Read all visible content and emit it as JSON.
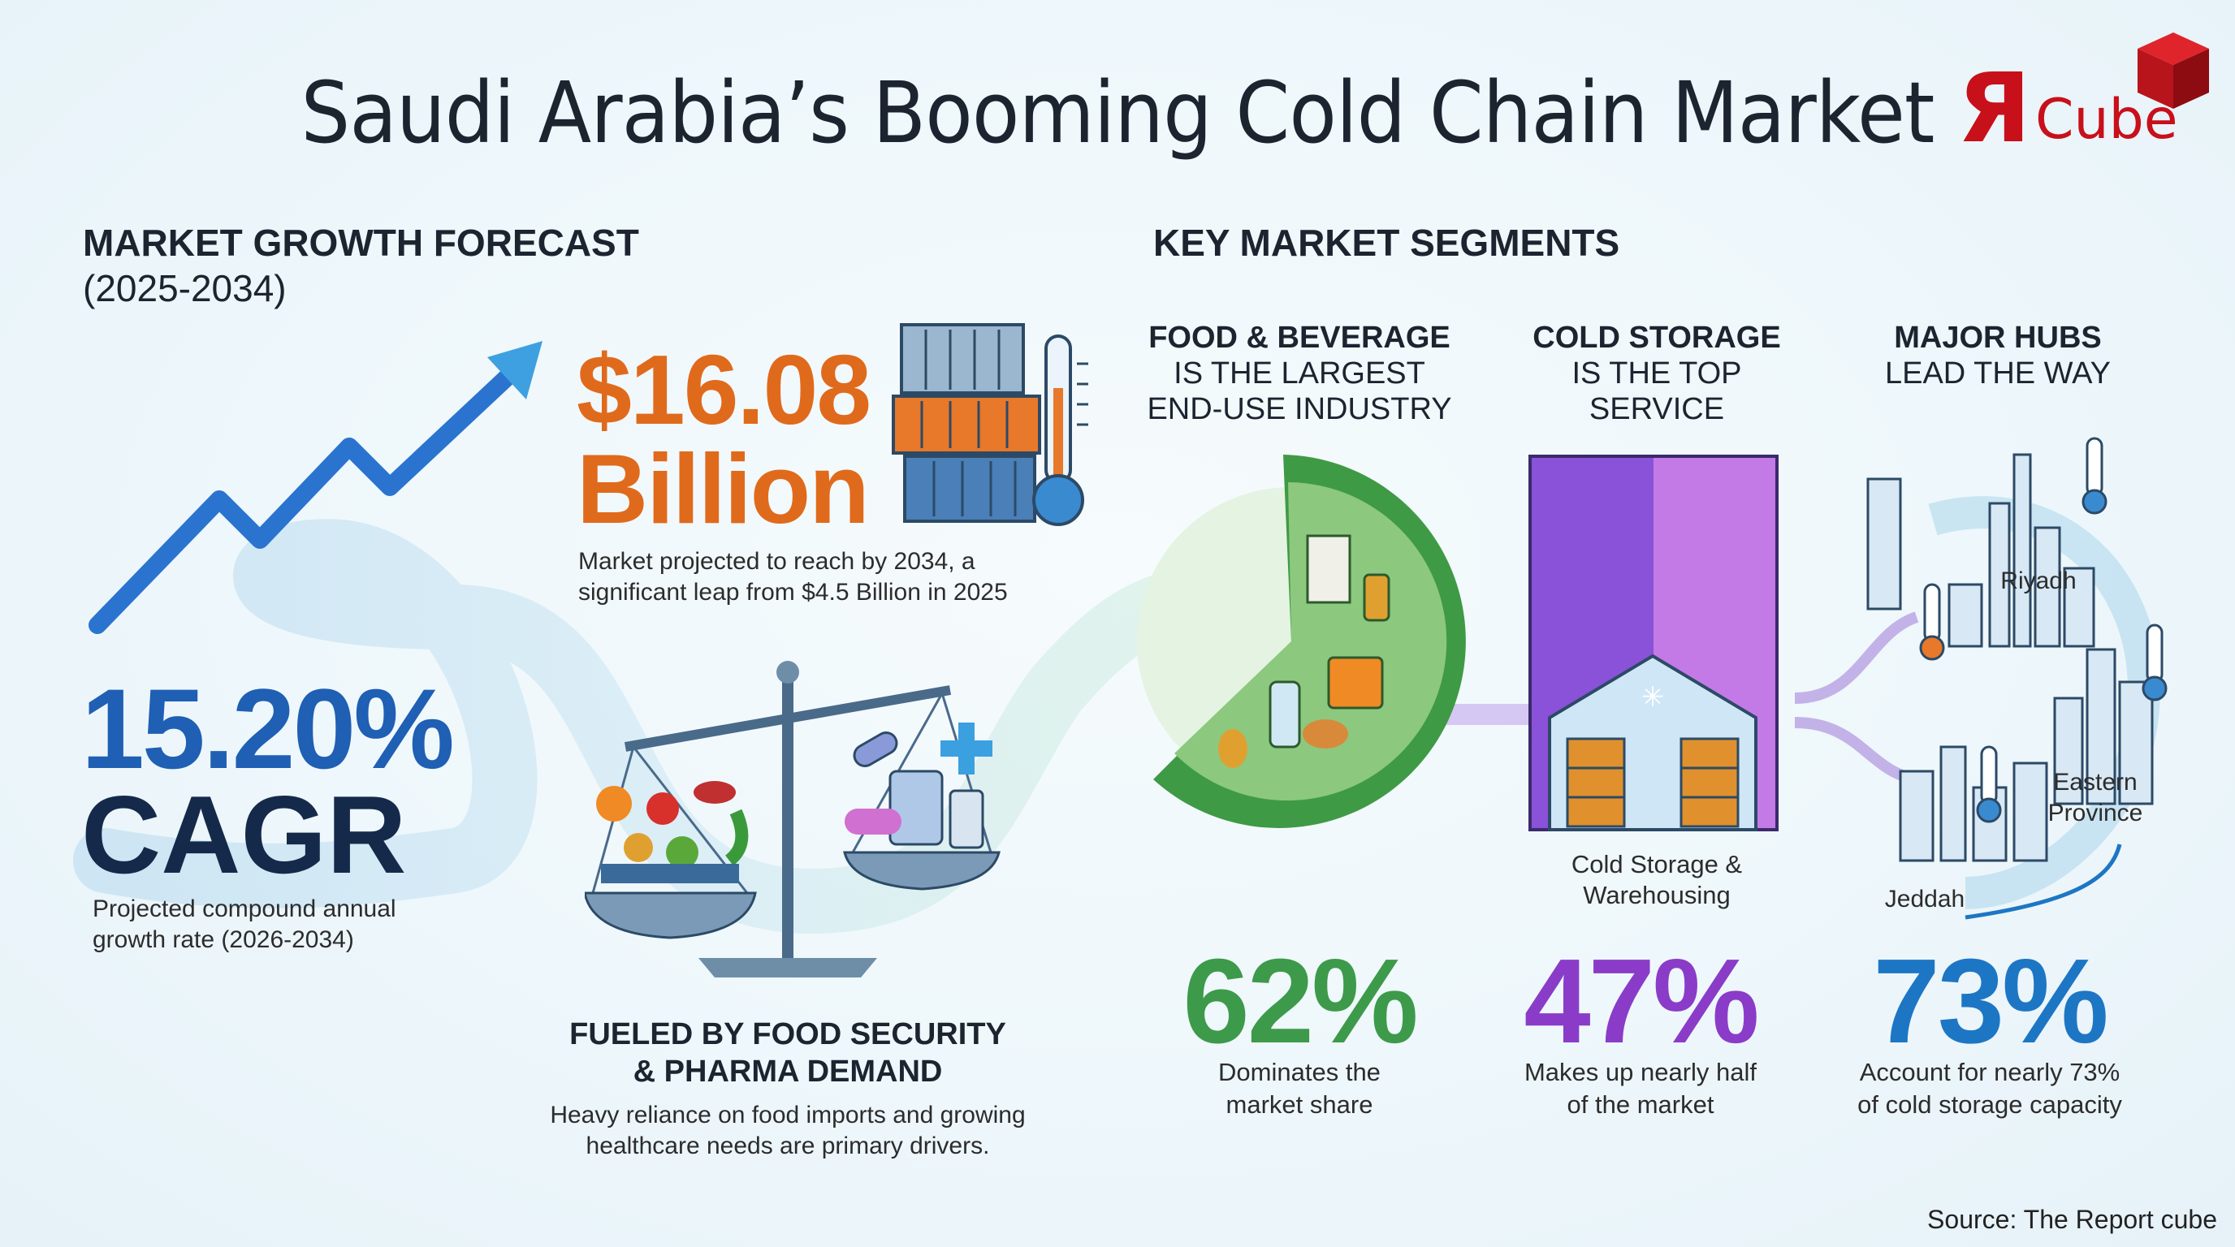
{
  "title": "Saudi Arabia’s Booming Cold Chain Market",
  "logo": {
    "mark": "Я",
    "word": "Cube"
  },
  "growth": {
    "heading": "MARKET GROWTH FORECAST",
    "period": "(2025-2034)",
    "value_line1": "$16.08",
    "value_line2": "Billion",
    "value_desc_line1": "Market projected to reach by 2034, a",
    "value_desc_line2": "significant leap from $4.5 Billion in 2025",
    "cagr_value": "15.20%",
    "cagr_word": "CAGR",
    "cagr_desc_line1": "Projected compound annual",
    "cagr_desc_line2": "growth rate (2026-2034)",
    "fuel_head_line1": "FUELED BY FOOD SECURITY",
    "fuel_head_line2": "& PHARMA DEMAND",
    "fuel_desc_line1": "Heavy reliance on food imports and growing",
    "fuel_desc_line2": "healthcare needs are primary drivers."
  },
  "segments": {
    "heading": "KEY MARKET SEGMENTS",
    "food": {
      "head_bold": "FOOD & BEVERAGE",
      "head_line2": "IS THE LARGEST",
      "head_line3": "END-USE INDUSTRY",
      "pct": "62%",
      "desc_line1": "Dominates the",
      "desc_line2": "market share",
      "color": "#3d9a4a"
    },
    "storage": {
      "head_bold": "COLD STORAGE",
      "head_line2": "IS THE TOP",
      "head_line3": "SERVICE",
      "label_line1": "Cold Storage &",
      "label_line2": "Warehousing",
      "pct": "47%",
      "desc_line1": "Makes up nearly half",
      "desc_line2": "of the market",
      "color": "#8a3cc8"
    },
    "hubs": {
      "head_bold": "MAJOR HUBS",
      "head_line2": "LEAD THE WAY",
      "cities": {
        "riyadh": "Riyadh",
        "eastern_line1": "Eastern",
        "eastern_line2": "Province",
        "jeddah": "Jeddah"
      },
      "pct": "73%",
      "desc_line1": "Account for nearly 73%",
      "desc_line2": "of cold storage capacity",
      "color": "#1d76c4"
    }
  },
  "source": "Source: The Report cube",
  "icons": [
    "trend-arrow-icon",
    "shipping-container-icon",
    "thermometer-icon",
    "balance-scale-icon",
    "food-basket-icon",
    "medicine-icon",
    "food-pie-icon",
    "warehouse-icon",
    "skyline-icon"
  ]
}
